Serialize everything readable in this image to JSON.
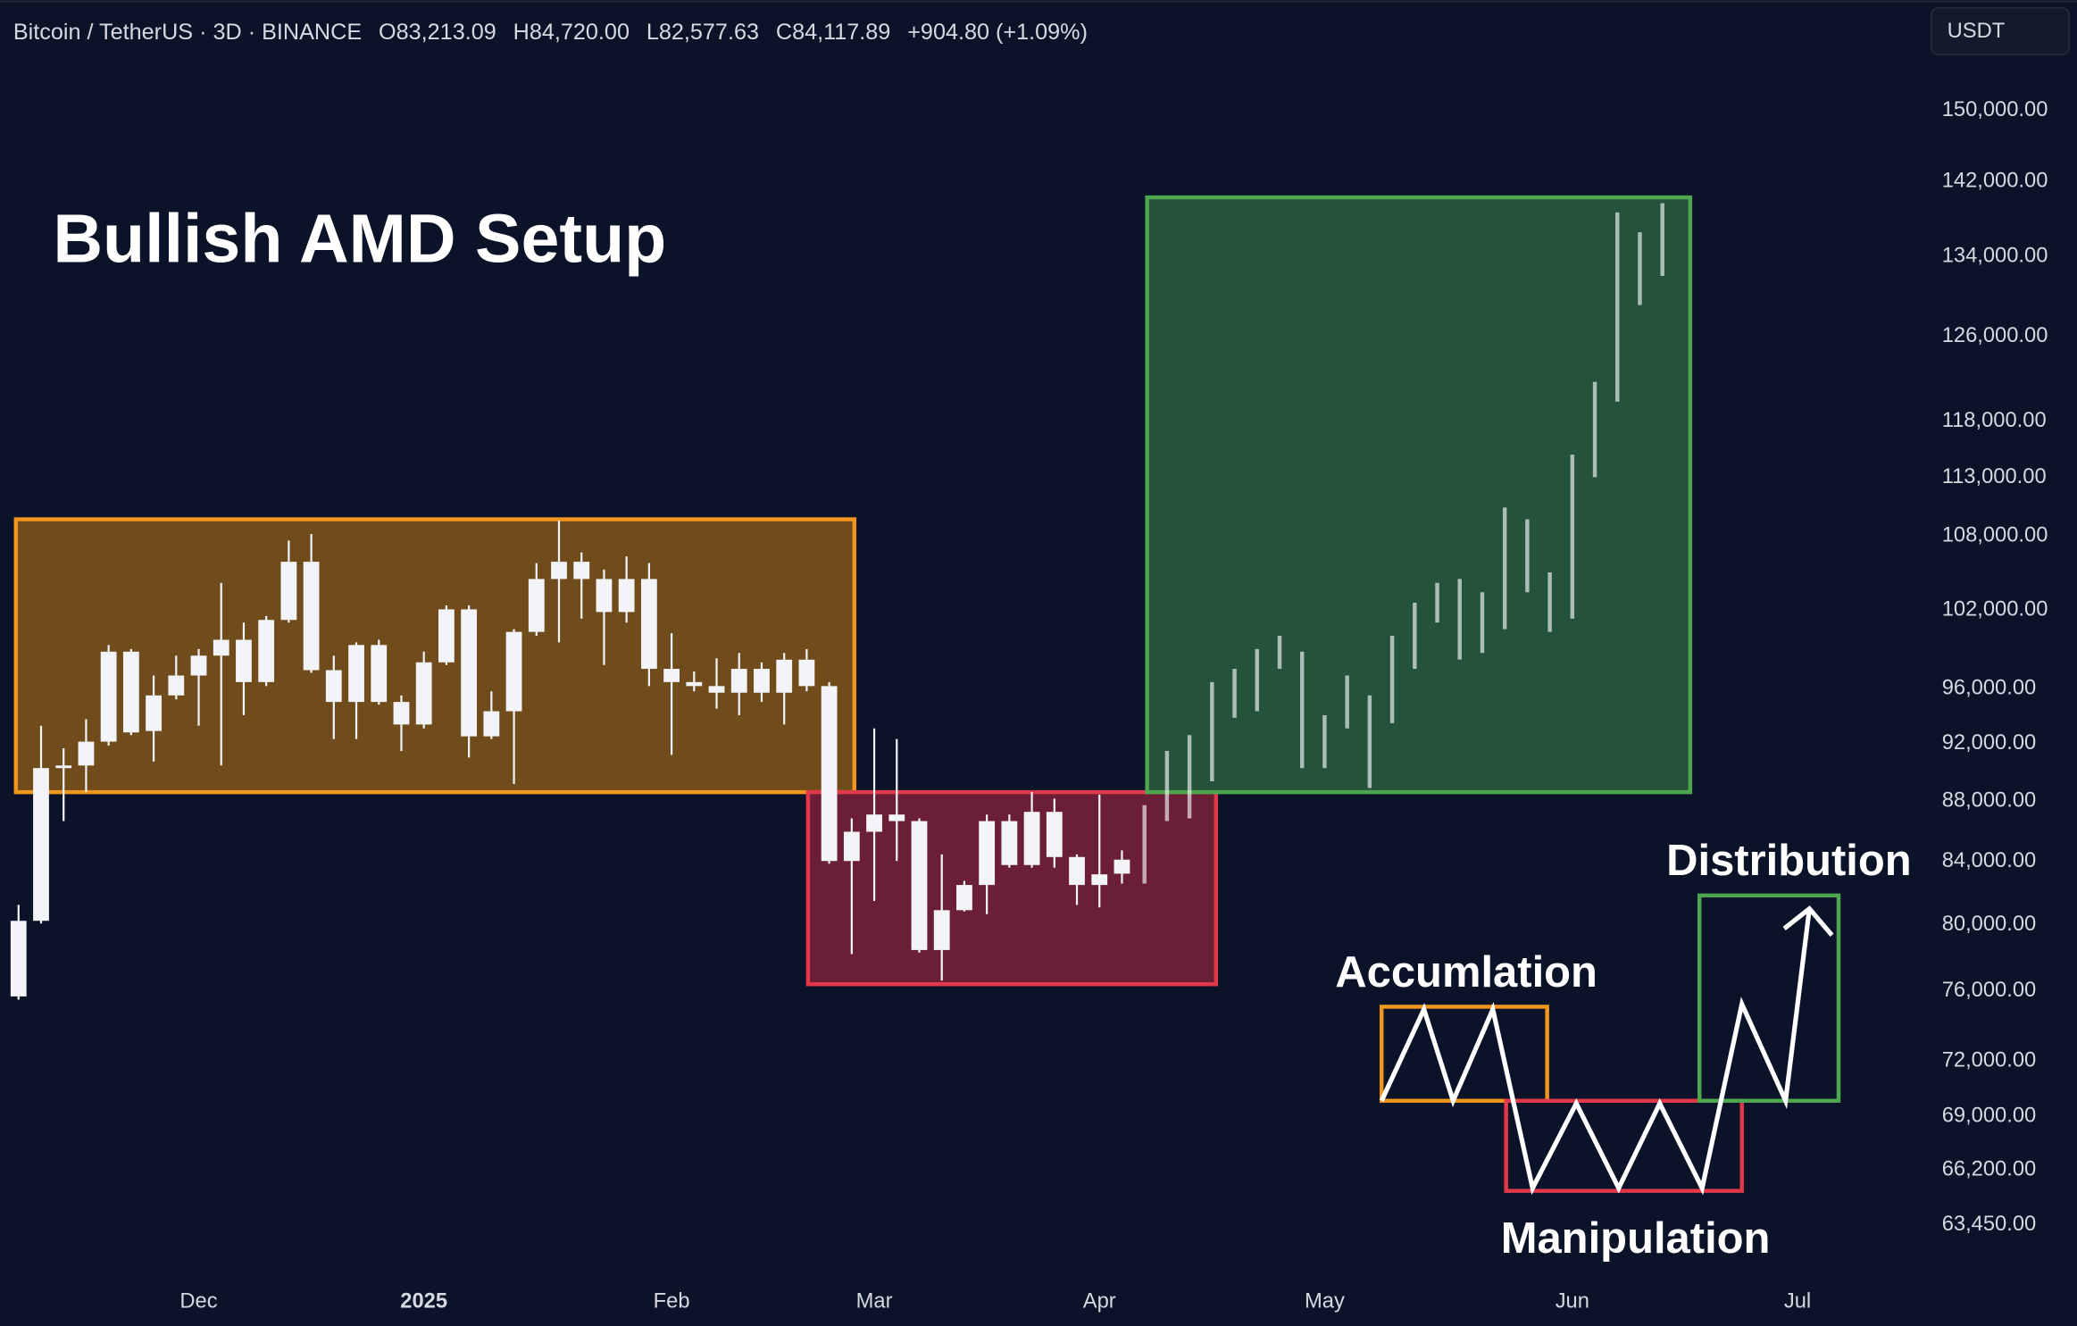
{
  "chart_data": {
    "type": "candlestick",
    "title": "Bullish AMD Setup",
    "header": [
      "Bitcoin / TetherUS · 3D · BINANCE",
      "O83,213.09",
      "H84,720.00",
      "L82,577.63",
      "C84,117.89",
      "+904.80 (+1.09%)"
    ],
    "currency": "USDT",
    "annotations": {
      "accumulation": "Accumlation",
      "manipulation": "Manipulation",
      "distribution": "Distribution"
    },
    "categories": [
      null,
      null,
      null,
      null,
      null,
      null,
      null,
      null,
      "Dec",
      null,
      null,
      null,
      null,
      null,
      null,
      null,
      null,
      null,
      "2025",
      null,
      null,
      null,
      null,
      null,
      null,
      null,
      null,
      null,
      null,
      "Feb",
      null,
      null,
      null,
      null,
      null,
      null,
      null,
      null,
      "Mar",
      null,
      null,
      null,
      null,
      null,
      null,
      null,
      null,
      null,
      "Apr",
      null,
      null,
      null,
      null,
      null,
      null,
      null,
      null,
      null,
      "May",
      null,
      null,
      null,
      null,
      null,
      null,
      null,
      null,
      null,
      null,
      "Jun",
      null,
      null,
      null,
      null,
      null,
      null,
      null,
      null,
      null,
      "Jul",
      null,
      null,
      null,
      null
    ],
    "open": [
      75690,
      80240,
      90280,
      90460,
      92140,
      98770,
      92900,
      95490,
      96970,
      98470,
      99680,
      96480,
      101220,
      105870,
      97370,
      95010,
      99280,
      95010,
      93370,
      97960,
      102050,
      92520,
      94330,
      100290,
      104470,
      105870,
      104470,
      101840,
      104470,
      97470,
      96480,
      96180,
      95690,
      97470,
      95690,
      98160,
      96180,
      84030,
      85950,
      87100,
      86660,
      78450,
      80900,
      82490,
      86660,
      83770,
      87280,
      84290,
      82490,
      83213.09,
      null,
      null,
      null,
      null,
      null,
      null,
      null,
      null,
      null,
      null,
      null,
      null,
      null,
      null,
      null,
      null,
      null,
      null,
      null,
      null,
      null,
      null,
      null,
      null,
      null,
      null,
      null,
      null,
      null,
      null,
      null,
      null,
      null,
      null
    ],
    "high": [
      81230,
      93270,
      91670,
      93750,
      99280,
      98970,
      96970,
      98470,
      98970,
      104160,
      101010,
      101530,
      107620,
      108170,
      98470,
      99480,
      99680,
      95490,
      98770,
      102360,
      102360,
      95790,
      100500,
      105760,
      109280,
      106630,
      105230,
      106310,
      105760,
      100190,
      97270,
      98270,
      98670,
      97960,
      98670,
      98970,
      96480,
      86840,
      93090,
      92330,
      86840,
      84460,
      82750,
      87100,
      87100,
      88630,
      88180,
      84460,
      88450,
      84720,
      null,
      null,
      null,
      null,
      null,
      null,
      null,
      null,
      null,
      null,
      null,
      null,
      null,
      null,
      null,
      null,
      null,
      null,
      null,
      null,
      null,
      null,
      null,
      null,
      null,
      null,
      null,
      null,
      null,
      null,
      null,
      null,
      null,
      null
    ],
    "low": [
      75500,
      80070,
      86660,
      88630,
      91860,
      92610,
      90740,
      95200,
      93280,
      90460,
      94040,
      96180,
      101010,
      97170,
      92330,
      92330,
      94810,
      91480,
      93090,
      97760,
      91020,
      92330,
      89180,
      99990,
      99480,
      101320,
      97760,
      101010,
      96180,
      91200,
      95790,
      94520,
      94040,
      95010,
      93370,
      95790,
      83860,
      78200,
      81480,
      84030,
      78290,
      76620,
      80820,
      80650,
      83600,
      83600,
      83600,
      81230,
      81070,
      82577.63,
      null,
      null,
      null,
      null,
      null,
      null,
      null,
      null,
      null,
      null,
      null,
      null,
      null,
      null,
      null,
      null,
      null,
      null,
      null,
      null,
      null,
      null,
      null,
      null,
      null,
      null,
      null,
      null,
      null,
      null,
      null,
      null,
      null,
      null
    ],
    "close": [
      80237,
      90280,
      90460,
      92140,
      98770,
      92800,
      95490,
      96970,
      98470,
      99680,
      96480,
      101220,
      105870,
      97370,
      95010,
      99280,
      95010,
      93370,
      97960,
      102050,
      92520,
      94330,
      100290,
      104470,
      105870,
      104470,
      101840,
      104470,
      97470,
      96480,
      96180,
      95690,
      97470,
      95690,
      98160,
      96180,
      84030,
      85950,
      87100,
      86660,
      78450,
      80900,
      82490,
      86660,
      83770,
      87280,
      84290,
      82490,
      83170,
      84117.89,
      null,
      null,
      null,
      null,
      null,
      null,
      null,
      null,
      null,
      null,
      null,
      null,
      null,
      null,
      null,
      null,
      null,
      null,
      null,
      null,
      null,
      null,
      null,
      null,
      null,
      null,
      null,
      null,
      null,
      null,
      null,
      null,
      null,
      null
    ],
    "projection": {
      "high": [
        null,
        null,
        null,
        null,
        null,
        null,
        null,
        null,
        null,
        null,
        null,
        null,
        null,
        null,
        null,
        null,
        null,
        null,
        null,
        null,
        null,
        null,
        null,
        null,
        null,
        null,
        null,
        null,
        null,
        null,
        null,
        null,
        null,
        null,
        null,
        null,
        null,
        null,
        null,
        null,
        null,
        null,
        null,
        null,
        null,
        null,
        null,
        null,
        null,
        null,
        87730,
        91480,
        92610,
        96480,
        97470,
        98970,
        99990,
        98770,
        94040,
        96970,
        95490,
        99990,
        102570,
        104160,
        104470,
        103410,
        110400,
        109390,
        105010,
        115000,
        121650,
        138640,
        136530,
        139630,
        null,
        null,
        null,
        null,
        null,
        null,
        null,
        null,
        null,
        null
      ],
      "low": [
        null,
        null,
        null,
        null,
        null,
        null,
        null,
        null,
        null,
        null,
        null,
        null,
        null,
        null,
        null,
        null,
        null,
        null,
        null,
        null,
        null,
        null,
        null,
        null,
        null,
        null,
        null,
        null,
        null,
        null,
        null,
        null,
        null,
        null,
        null,
        null,
        null,
        null,
        null,
        null,
        null,
        null,
        null,
        null,
        null,
        null,
        null,
        null,
        null,
        null,
        82580,
        86660,
        86840,
        89360,
        93850,
        94330,
        97470,
        90280,
        90280,
        93090,
        88900,
        93470,
        97470,
        101010,
        98170,
        98670,
        100500,
        103410,
        100290,
        101320,
        113020,
        119800,
        129080,
        132010,
        null,
        null,
        null,
        null,
        null,
        null,
        null,
        null,
        null,
        null
      ]
    },
    "log_scale": true,
    "ylim": [
      61200,
      156000
    ],
    "yticks": [
      {
        "value": 150000,
        "label": "150,000.00"
      },
      {
        "value": 142000,
        "label": "142,000.00"
      },
      {
        "value": 134000,
        "label": "134,000.00"
      },
      {
        "value": 126000,
        "label": "126,000.00"
      },
      {
        "value": 118000,
        "label": "118,000.00"
      },
      {
        "value": 113000,
        "label": "113,000.00"
      },
      {
        "value": 108000,
        "label": "108,000.00"
      },
      {
        "value": 102000,
        "label": "102,000.00"
      },
      {
        "value": 96000,
        "label": "96,000.00"
      },
      {
        "value": 92000,
        "label": "92,000.00"
      },
      {
        "value": 88000,
        "label": "88,000.00"
      },
      {
        "value": 84000,
        "label": "84,000.00"
      },
      {
        "value": 80000,
        "label": "80,000.00"
      },
      {
        "value": 76000,
        "label": "76,000.00"
      },
      {
        "value": 72000,
        "label": "72,000.00"
      },
      {
        "value": 69000,
        "label": "69,000.00"
      },
      {
        "value": 66200,
        "label": "66,200.00"
      },
      {
        "value": 63450,
        "label": "63,450.00"
      }
    ],
    "candle_color": "#f2f4f7",
    "projection_color": "#ffffff"
  }
}
